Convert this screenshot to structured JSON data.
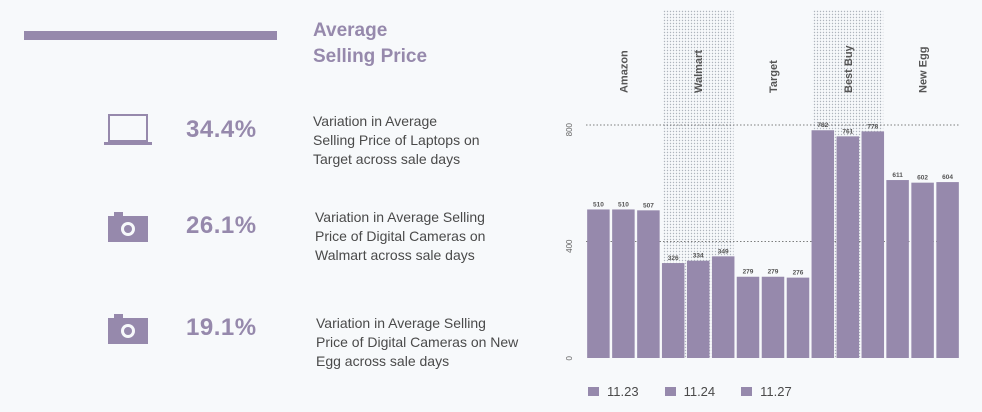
{
  "title": "Average\nSelling Price",
  "stats": [
    {
      "icon": "laptop-icon",
      "value": "34.4%",
      "desc": "Variation in Average\nSelling Price of Laptops on\nTarget across sale days"
    },
    {
      "icon": "camera-icon",
      "value": "26.1%",
      "desc": "Variation in Average Selling\nPrice of Digital Cameras on\nWalmart across sale days"
    },
    {
      "icon": "camera-icon",
      "value": "19.1%",
      "desc": "Variation in Average Selling\nPrice of Digital Cameras on New\nEgg across sale days"
    }
  ],
  "colors": {
    "accent": "#9689ac",
    "text": "#4a4a4a",
    "background": "#f7f9fb"
  },
  "chart_data": {
    "type": "bar",
    "categories": [
      "Amazon",
      "Walmart",
      "Target",
      "Best Buy",
      "New Egg"
    ],
    "series": [
      {
        "name": "11.23",
        "values": [
          510,
          326,
          279,
          782,
          611
        ]
      },
      {
        "name": "11.24",
        "values": [
          510,
          334,
          279,
          761,
          602
        ]
      },
      {
        "name": "11.27",
        "values": [
          507,
          349,
          276,
          778,
          604
        ]
      }
    ],
    "yticks": [
      0,
      400,
      800
    ],
    "ylim": [
      0,
      800
    ],
    "shaded_categories": [
      "Walmart",
      "Best Buy"
    ],
    "grid": true,
    "legend_position": "bottom-left"
  }
}
